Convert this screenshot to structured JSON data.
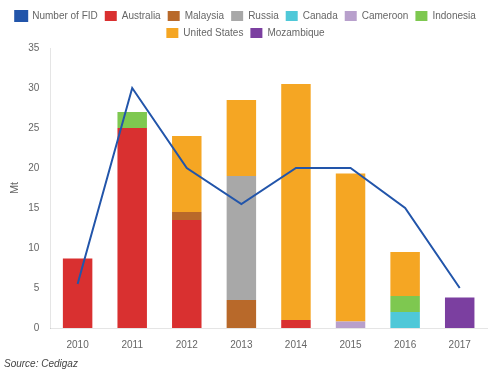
{
  "chart_data": {
    "type": "bar",
    "stacked": true,
    "categories": [
      "2010",
      "2011",
      "2012",
      "2013",
      "2014",
      "2015",
      "2016",
      "2017"
    ],
    "series": [
      {
        "name": "Australia",
        "type": "bar",
        "color": "#D93030",
        "values": [
          8.7,
          25.0,
          13.5,
          0.0,
          1.0,
          0.0,
          0.0,
          0.0
        ]
      },
      {
        "name": "Malaysia",
        "type": "bar",
        "color": "#B8692A",
        "values": [
          0.0,
          0.0,
          1.0,
          3.5,
          0.0,
          0.0,
          0.0,
          0.0
        ]
      },
      {
        "name": "Russia",
        "type": "bar",
        "color": "#A8A8A8",
        "values": [
          0.0,
          0.0,
          0.0,
          15.5,
          0.0,
          0.0,
          0.0,
          0.0
        ]
      },
      {
        "name": "Canada",
        "type": "bar",
        "color": "#4FC8D8",
        "values": [
          0.0,
          0.0,
          0.0,
          0.0,
          0.0,
          0.0,
          2.0,
          0.0
        ]
      },
      {
        "name": "Cameroon",
        "type": "bar",
        "color": "#B8A0CC",
        "values": [
          0.0,
          0.0,
          0.0,
          0.0,
          0.0,
          0.8,
          0.0,
          0.0
        ]
      },
      {
        "name": "Indonesia",
        "type": "bar",
        "color": "#7EC850",
        "values": [
          0.0,
          2.0,
          0.0,
          0.0,
          0.0,
          0.0,
          2.0,
          0.0
        ]
      },
      {
        "name": "United States",
        "type": "bar",
        "color": "#F5A623",
        "values": [
          0.0,
          0.0,
          9.5,
          9.5,
          29.5,
          18.5,
          5.5,
          0.0
        ]
      },
      {
        "name": "Mozambique",
        "type": "bar",
        "color": "#7B3FA0",
        "values": [
          0.0,
          0.0,
          0.0,
          0.0,
          0.0,
          0.0,
          0.0,
          3.8
        ]
      },
      {
        "name": "Number of FID",
        "type": "line",
        "color": "#2255AA",
        "marker": "none",
        "line_style": "solid",
        "values": [
          5.5,
          30.0,
          20.0,
          15.5,
          20.0,
          20.0,
          15.0,
          5.0
        ]
      }
    ],
    "ylabel": "Mt",
    "ylim": [
      0,
      35
    ],
    "yticks": [
      0,
      5,
      10,
      15,
      20,
      25,
      30,
      35
    ],
    "grid": false,
    "legend": "top",
    "annotations": [
      "Source: Cedigaz"
    ]
  }
}
